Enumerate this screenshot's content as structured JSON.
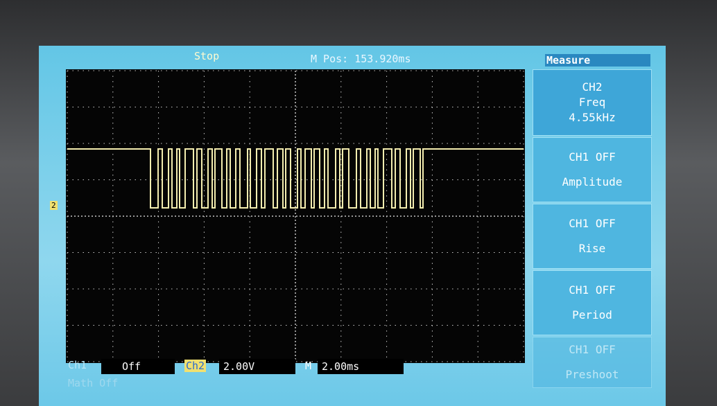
{
  "header": {
    "status": "Stop",
    "position": "M Pos: 153.920ms"
  },
  "trigger_marker": "2",
  "menu": {
    "title": "Measure",
    "items": [
      {
        "lines": [
          "CH2",
          "Freq",
          "4.55kHz"
        ]
      },
      {
        "lines": [
          "CH1  OFF",
          "Amplitude"
        ]
      },
      {
        "lines": [
          "CH1  OFF",
          "Rise"
        ]
      },
      {
        "lines": [
          "CH1  OFF",
          "Period"
        ]
      },
      {
        "lines": [
          "CH1  OFF",
          "Preshoot"
        ]
      }
    ]
  },
  "footer": {
    "ch1_label": "Ch1",
    "ch1_value": "Off",
    "ch2_label": "Ch2",
    "ch2_value": "2.00V",
    "m_label": "M",
    "m_value": "2.00ms",
    "math": "Math Off"
  }
}
